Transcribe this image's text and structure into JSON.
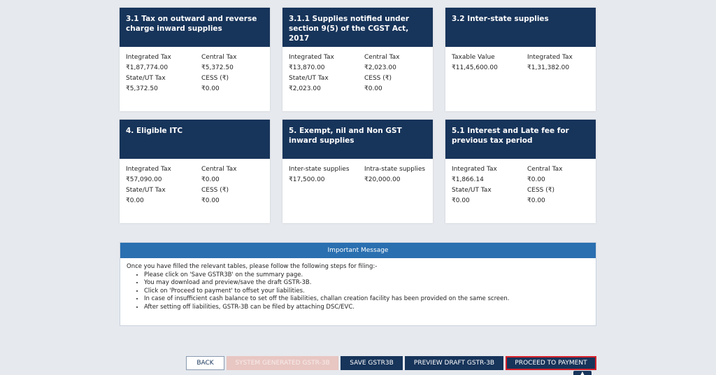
{
  "cards": [
    {
      "title": "3.1 Tax on outward and reverse charge inward supplies",
      "rows": [
        [
          "Integrated Tax",
          "Central Tax"
        ],
        [
          "₹1,87,774.00",
          "₹5,372.50"
        ],
        [
          "State/UT Tax",
          "CESS (₹)"
        ],
        [
          "₹5,372.50",
          "₹0.00"
        ]
      ]
    },
    {
      "title": "3.1.1 Supplies notified under section 9(5) of the CGST Act, 2017",
      "rows": [
        [
          "Integrated Tax",
          "Central Tax"
        ],
        [
          "₹13,870.00",
          "₹2,023.00"
        ],
        [
          "State/UT Tax",
          "CESS (₹)"
        ],
        [
          "₹2,023.00",
          "₹0.00"
        ]
      ]
    },
    {
      "title": "3.2 Inter-state supplies",
      "rows": [
        [
          "Taxable Value",
          "Integrated Tax"
        ],
        [
          "₹11,45,600.00",
          "₹1,31,382.00"
        ]
      ]
    },
    {
      "title": "4. Eligible ITC",
      "rows": [
        [
          "Integrated Tax",
          "Central Tax"
        ],
        [
          "₹57,090.00",
          "₹0.00"
        ],
        [
          "State/UT Tax",
          "CESS (₹)"
        ],
        [
          "₹0.00",
          "₹0.00"
        ]
      ]
    },
    {
      "title": "5. Exempt, nil and Non GST inward supplies",
      "rows": [
        [
          "Inter-state supplies",
          "Intra-state supplies"
        ],
        [
          "₹17,500.00",
          "₹20,000.00"
        ]
      ]
    },
    {
      "title": "5.1 Interest and Late fee for previous tax period",
      "rows": [
        [
          "Integrated Tax",
          "Central Tax"
        ],
        [
          "₹1,866.14",
          "₹0.00"
        ],
        [
          "State/UT Tax",
          "CESS (₹)"
        ],
        [
          "₹0.00",
          "₹0.00"
        ]
      ]
    }
  ],
  "message": {
    "header": "Important Message",
    "intro": "Once you have filled the relevant tables, please follow the following steps for filing:-",
    "steps": [
      "Please click on 'Save GSTR3B' on the summary page.",
      "You may download and preview/save the draft GSTR-3B.",
      "Click on 'Proceed to payment' to offset your liabilities.",
      "In case of insufficient cash balance to set off the liabilities, challan creation facility has been provided on the same screen.",
      "After setting off liabilities, GSTR-3B can be filed by attaching DSC/EVC."
    ]
  },
  "buttons": {
    "back": "BACK",
    "system_generated": "SYSTEM GENERATED GSTR-3B",
    "save": "SAVE GSTR3B",
    "preview": "PREVIEW DRAFT GSTR-3B",
    "proceed": "PROCEED TO PAYMENT"
  },
  "scroll_top_icon": "chevron-up-icon",
  "colors": {
    "card_header": "#17345a",
    "message_header": "#2a6fb0",
    "proceed_border": "#d6202a",
    "disabled_button": "#e8c6c2"
  }
}
